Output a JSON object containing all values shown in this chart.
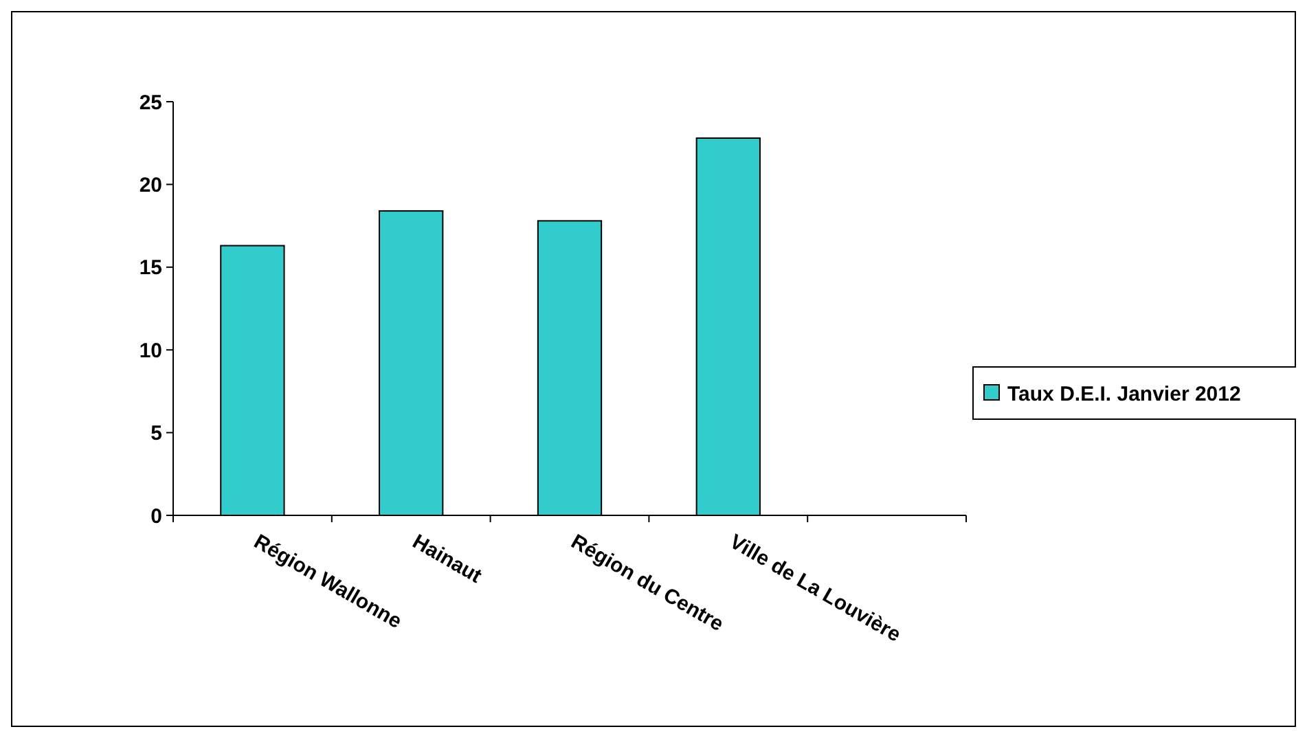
{
  "chart_data": {
    "type": "bar",
    "categories": [
      "Région Wallonne",
      "Hainaut",
      "Région du Centre",
      "Ville de La Louvière"
    ],
    "series": [
      {
        "name": "Taux D.E.I. Janvier 2012",
        "color": "#33cccc",
        "values": [
          16.3,
          18.4,
          17.8,
          22.8
        ]
      }
    ],
    "ylim": [
      0,
      25
    ],
    "yticks": [
      0,
      5,
      10,
      15,
      20,
      25
    ],
    "grid": false,
    "legend": "right"
  }
}
